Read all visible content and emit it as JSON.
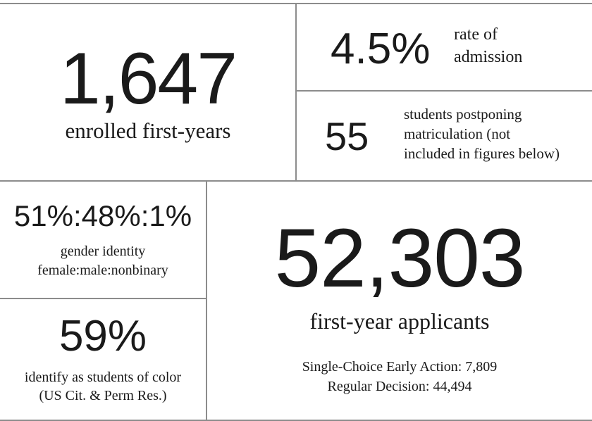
{
  "enrolled": {
    "number": "1,647",
    "label": "enrolled first-years"
  },
  "admission": {
    "number": "4.5%",
    "label_line1": "rate of",
    "label_line2": "admission"
  },
  "postponing": {
    "number": "55",
    "label_line1": "students postponing",
    "label_line2": "matriculation (not",
    "label_line3": "included in figures below)"
  },
  "gender": {
    "number": "51%:48%:1%",
    "label_line1": "gender identity",
    "label_line2": "female:male:nonbinary"
  },
  "students_of_color": {
    "number": "59%",
    "label_line1": "identify as students of color",
    "label_line2": "(US Cit. & Perm Res.)"
  },
  "applicants": {
    "number": "52,303",
    "label": "first-year applicants",
    "detail_line1": "Single-Choice Early Action: 7,809",
    "detail_line2": "Regular Decision: 44,494"
  }
}
